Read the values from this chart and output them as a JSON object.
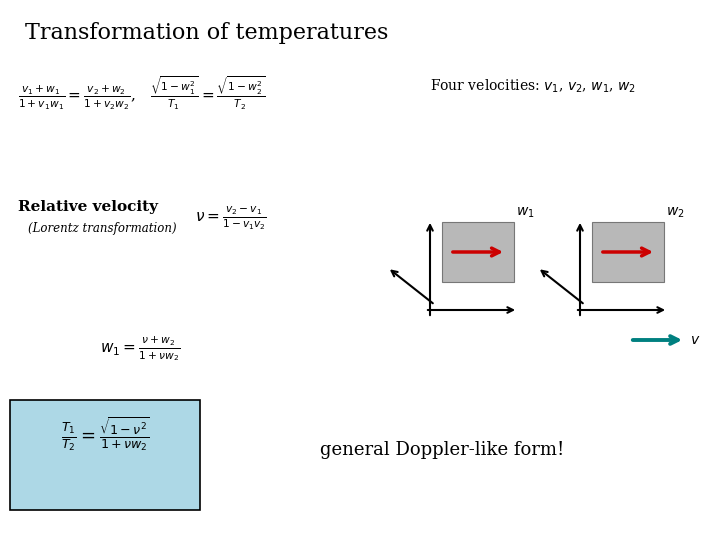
{
  "title": "Transformation of temperatures",
  "title_fontsize": 16,
  "background_color": "#ffffff",
  "four_velocities_text": "Four velocities: $v_1$, $v_2$, $w_1$, $w_2$",
  "relative_velocity_label": "Relative velocity",
  "lorentz_label": "(Lorentz transformation)",
  "doppler_text": "general Doppler-like form!",
  "box_fill_color": "#add8e6",
  "gray_box_color": "#b8b8b8",
  "red_arrow_color": "#cc0000",
  "teal_arrow_color": "#008080",
  "w1_label": "$w_1$",
  "w2_label": "$w_2$",
  "v_label": "$v$"
}
